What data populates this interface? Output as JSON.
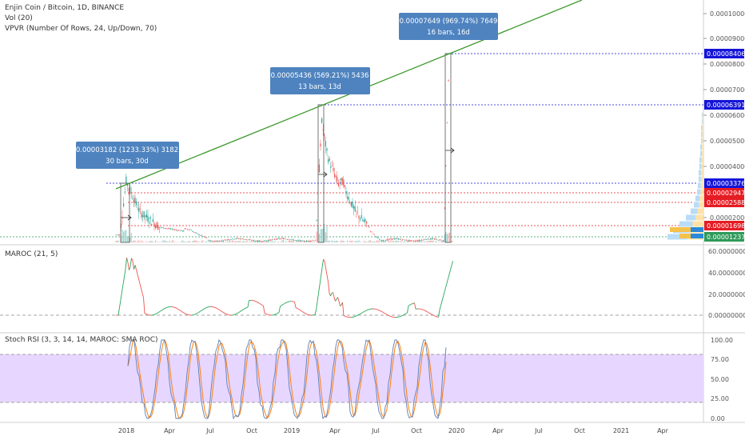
{
  "header": {
    "title": "Enjin Coin / Bitcoin, 1D, BINANCE",
    "vol_label": "Vol (20)",
    "vpvr_label": "VPVR (Number Of Rows, 24, Up/Down, 70)"
  },
  "price_axis": {
    "ticks": [
      "0.00010000",
      "0.00009000",
      "0.00008000",
      "0.00007000",
      "0.00006000",
      "0.00005000",
      "0.00004000",
      "0.00003000",
      "0.00002000"
    ],
    "badges": [
      {
        "label": "0.00008406",
        "color": "#1515d8"
      },
      {
        "label": "0.00006391",
        "color": "#1515d8"
      },
      {
        "label": "0.00003376",
        "color": "#1515d8"
      },
      {
        "label": "0.00002947",
        "color": "#e51c23"
      },
      {
        "label": "0.00002588",
        "color": "#e51c23"
      },
      {
        "label": "0.00001698",
        "color": "#e51c23"
      },
      {
        "label": "0.00001237",
        "color": "#2e9a5a"
      }
    ]
  },
  "callouts": [
    {
      "line1": "0.00003182 (1233.33%) 3182",
      "line2": "30 bars, 30d"
    },
    {
      "line1": "0.00005436 (569.21%) 5436",
      "line2": "13 bars, 13d"
    },
    {
      "line1": "0.00007649 (969.74%) 7649",
      "line2": "16 bars, 16d"
    }
  ],
  "maroc": {
    "title": "MAROC (21, 5)",
    "ticks": [
      "60.00000000",
      "40.00000000",
      "20.00000000",
      "0.00000000"
    ]
  },
  "stoch": {
    "title": "Stoch RSI (3, 3, 14, 14, MAROC: SMA ROC)",
    "ticks": [
      "100.00",
      "75.00",
      "50.00",
      "25.00",
      "0.00"
    ]
  },
  "time_axis": {
    "labels": [
      "2018",
      "Apr",
      "Jul",
      "Oct",
      "2019",
      "Apr",
      "Jul",
      "Oct",
      "2020",
      "Apr",
      "Jul",
      "Oct",
      "2021",
      "Apr"
    ]
  },
  "colors": {
    "trendline": "#3f9a2e",
    "callout_bg": "#4e83bf",
    "up": "#26a69a",
    "down": "#ef5350",
    "stoch_band": "#e7d6ff",
    "k_line": "#2962ff",
    "d_line": "#ff7f0e"
  },
  "chart_data": {
    "type": "line",
    "title": "Enjin Coin / Bitcoin, 1D, BINANCE",
    "y_axis": {
      "min": 1e-05,
      "max": 0.0001
    },
    "key_levels": [
      8.406e-05,
      6.391e-05,
      3.376e-05,
      2.947e-05,
      2.588e-05,
      1.698e-05,
      1.237e-05
    ],
    "x": [
      "2017-12",
      "2018-01",
      "2018-02",
      "2018-03",
      "2018-04",
      "2018-05",
      "2018-06",
      "2018-07",
      "2018-08",
      "2018-09",
      "2018-10",
      "2018-11",
      "2018-12",
      "2019-01",
      "2019-02",
      "2019-03",
      "2019-04",
      "2019-05",
      "2019-06",
      "2019-07",
      "2019-08",
      "2019-09",
      "2019-10",
      "2019-11",
      "2019-12"
    ],
    "series": [
      {
        "values": [
          1.25e-05,
          3.3e-05,
          2.15e-05,
          1.8e-05,
          1.5e-05,
          1.35e-05,
          1.2e-05,
          1.05e-05,
          9.5e-06,
          9.2e-06,
          9.5e-06,
          9.5e-06,
          8.8e-06,
          8.8e-06,
          9.5e-06,
          5.8e-05,
          3.4e-05,
          2.9e-05,
          1.6e-05,
          1.1e-05,
          9.5e-06,
          9.2e-06,
          9.2e-06,
          9.4e-06,
          8.4e-05
        ]
      }
    ],
    "callouts": [
      {
        "change": 3.182e-05,
        "percent": 1233.33,
        "bars": 30,
        "days": 30
      },
      {
        "change": 5.436e-05,
        "percent": 569.21,
        "bars": 13,
        "days": 13
      },
      {
        "change": 7.649e-05,
        "percent": 969.74,
        "bars": 16,
        "days": 16
      }
    ],
    "maroc": {
      "ylim": [
        0,
        60
      ],
      "x": [
        "2017-12",
        "2018-01",
        "2018-02",
        "2018-03",
        "2018-06",
        "2018-09",
        "2018-12",
        "2019-02",
        "2019-03",
        "2019-04",
        "2019-05",
        "2019-07",
        "2019-09",
        "2019-11",
        "2019-12"
      ],
      "values": [
        0,
        48,
        55,
        15,
        5,
        2,
        8,
        5,
        55,
        20,
        -3,
        2,
        5,
        5,
        55
      ]
    },
    "stoch_rsi": {
      "ylim": [
        0,
        100
      ],
      "bands": [
        20,
        80
      ]
    }
  }
}
